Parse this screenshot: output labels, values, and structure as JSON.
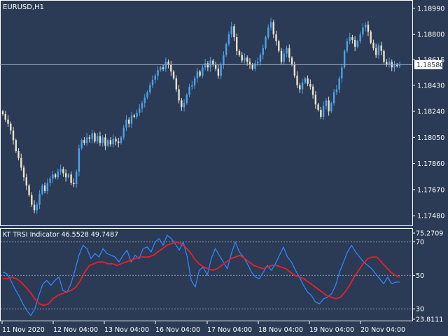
{
  "colors": {
    "background": "#2b3a55",
    "border": "#ffffff",
    "text": "#ffffff",
    "candle_up": "#4aa3e8",
    "candle_down": "#ece2cb",
    "price_line": "#9aa6b8",
    "fast_line": "#2e86ff",
    "slow_line": "#e8212b",
    "level_line": "#8f9bb0",
    "price_tag_bg": "#ffffff",
    "price_tag_text": "#2b3a55"
  },
  "chart_data": [
    {
      "type": "candlestick",
      "title": "EURUSD,H1",
      "y_ticks": [
        "1.18990",
        "1.18800",
        "1.18615",
        "1.18430",
        "1.18240",
        "1.18050",
        "1.17860",
        "1.17670",
        "1.17480"
      ],
      "ylim": [
        1.1743,
        1.1902
      ],
      "current_price": "1.18580",
      "close_series": [
        1.1822,
        1.1818,
        1.1815,
        1.181,
        1.1803,
        1.1795,
        1.179,
        1.1783,
        1.1776,
        1.177,
        1.1763,
        1.1756,
        1.1752,
        1.1756,
        1.1764,
        1.177,
        1.1766,
        1.1772,
        1.1775,
        1.1778,
        1.1776,
        1.178,
        1.1782,
        1.1779,
        1.1776,
        1.1778,
        1.1772,
        1.1771,
        1.178,
        1.1797,
        1.1803,
        1.1801,
        1.1805,
        1.1804,
        1.1808,
        1.1802,
        1.1806,
        1.1801,
        1.1805,
        1.1799,
        1.1803,
        1.18,
        1.1804,
        1.1802,
        1.1801,
        1.1805,
        1.1812,
        1.1818,
        1.1815,
        1.1821,
        1.182,
        1.1823,
        1.1826,
        1.183,
        1.1834,
        1.1838,
        1.1843,
        1.1847,
        1.185,
        1.1854,
        1.1856,
        1.1855,
        1.186,
        1.1858,
        1.1853,
        1.1848,
        1.184,
        1.1832,
        1.1827,
        1.183,
        1.1836,
        1.1842,
        1.1843,
        1.1848,
        1.1853,
        1.185,
        1.1856,
        1.1859,
        1.1856,
        1.1861,
        1.1858,
        1.1855,
        1.185,
        1.1858,
        1.1865,
        1.1873,
        1.188,
        1.1886,
        1.1878,
        1.1868,
        1.1865,
        1.1861,
        1.1863,
        1.186,
        1.1858,
        1.1855,
        1.1859,
        1.186,
        1.1865,
        1.187,
        1.1878,
        1.1885,
        1.1889,
        1.188,
        1.1875,
        1.1868,
        1.186,
        1.1866,
        1.187,
        1.1863,
        1.1858,
        1.185,
        1.1843,
        1.184,
        1.1845,
        1.1848,
        1.1844,
        1.1842,
        1.1836,
        1.1829,
        1.1825,
        1.182,
        1.1828,
        1.1832,
        1.1824,
        1.183,
        1.1838,
        1.184,
        1.1848,
        1.1856,
        1.1868,
        1.1875,
        1.1878,
        1.1876,
        1.1871,
        1.1875,
        1.188,
        1.1885,
        1.1887,
        1.1882,
        1.1874,
        1.187,
        1.1865,
        1.1872,
        1.1868,
        1.186,
        1.1858,
        1.186,
        1.1856,
        1.1858,
        1.1857,
        1.1858
      ],
      "panel": "main"
    },
    {
      "type": "line",
      "title": "KT TRSI Indicator 46.5528 49.7487",
      "y_ticks": [
        "75.2709",
        "70",
        "50",
        "30",
        "23.8111"
      ],
      "ylim": [
        23.8111,
        75.2709
      ],
      "levels": [
        70,
        50,
        30
      ],
      "x_ticks": [
        "11 Nov 2020",
        "12 Nov 04:00",
        "13 Nov 04:00",
        "16 Nov 04:00",
        "17 Nov 04:00",
        "18 Nov 04:00",
        "19 Nov 04:00",
        "20 Nov 04:00"
      ],
      "series": [
        {
          "name": "fast",
          "values": [
            52,
            51,
            47,
            42,
            38,
            33,
            29,
            26,
            30,
            38,
            45,
            47,
            44,
            47,
            49,
            41,
            40,
            45,
            53,
            62,
            68,
            66,
            60,
            63,
            61,
            66,
            63,
            62,
            61,
            58,
            62,
            65,
            58,
            62,
            60,
            66,
            67,
            64,
            70,
            72,
            68,
            74,
            72,
            69,
            65,
            70,
            61,
            47,
            43,
            53,
            55,
            50,
            60,
            66,
            62,
            58,
            54,
            63,
            70,
            64,
            61,
            57,
            52,
            49,
            48,
            52,
            56,
            53,
            57,
            62,
            67,
            61,
            58,
            53,
            49,
            44,
            40,
            38,
            34,
            33,
            36,
            37,
            39,
            44,
            52,
            58,
            64,
            68,
            64,
            61,
            58,
            56,
            54,
            51,
            48,
            45,
            49,
            45,
            46,
            46
          ]
        },
        {
          "name": "slow",
          "values": [
            48,
            48,
            49,
            48,
            46,
            43,
            40,
            36,
            33,
            32,
            33,
            36,
            38,
            39,
            40,
            41,
            43,
            47,
            52,
            56,
            57,
            58,
            58,
            57,
            57,
            56,
            57,
            58,
            59,
            60,
            61,
            61,
            61,
            62,
            64,
            66,
            68,
            69,
            70,
            69,
            67,
            64,
            60,
            57,
            55,
            54,
            53,
            54,
            56,
            58,
            60,
            61,
            62,
            60,
            58,
            56,
            55,
            54,
            55,
            56,
            56,
            55,
            54,
            52,
            50,
            49,
            48,
            46,
            44,
            42,
            40,
            38,
            37,
            36,
            37,
            40,
            44,
            49,
            53,
            57,
            60,
            61,
            61,
            58,
            55,
            52,
            50,
            49
          ]
        }
      ],
      "panel": "indicator"
    }
  ]
}
